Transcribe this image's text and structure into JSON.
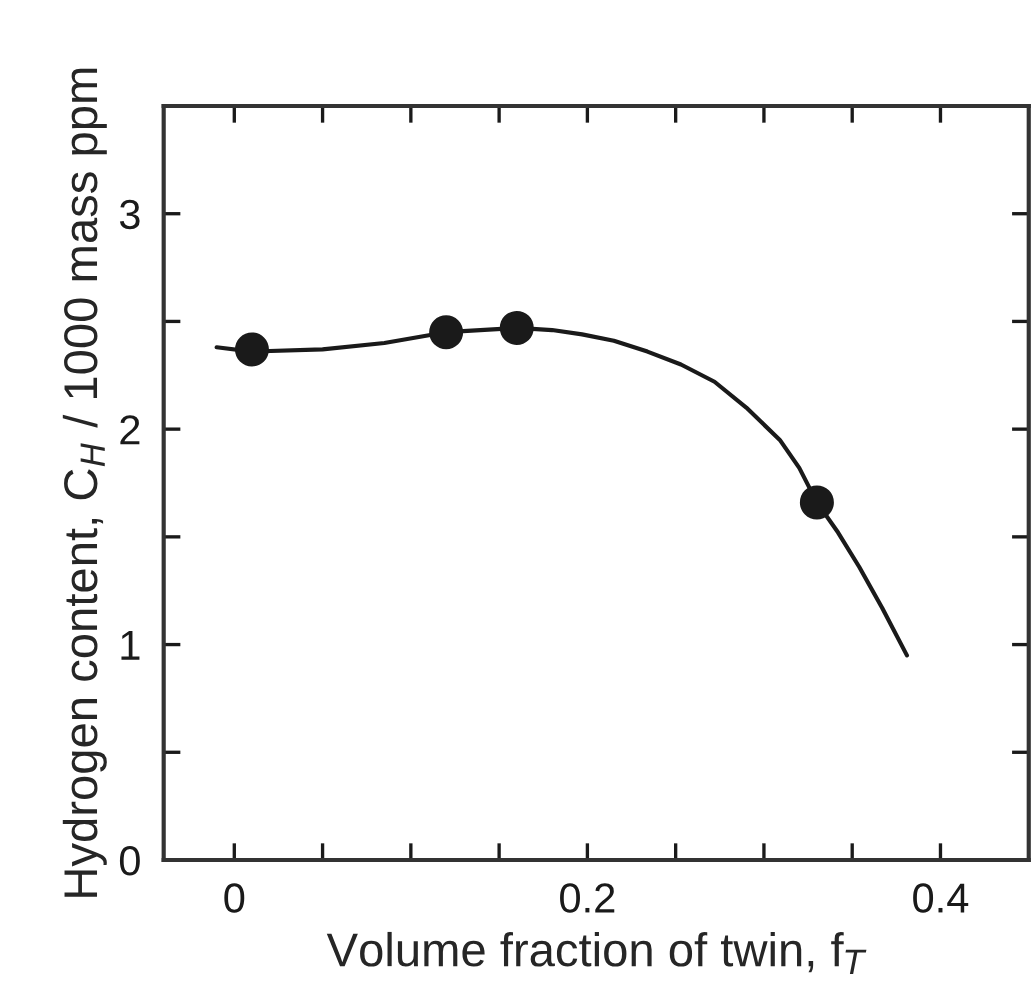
{
  "chart_data": {
    "type": "scatter",
    "xlabel": "Volume fraction of twin, f$_{T}$",
    "ylabel": "Hydrogen content, C$_{H}$ / 1000 mass ppm",
    "series": [
      {
        "color": "#1a1a1a",
        "marker": "circle",
        "x": [
          0.01,
          0.12,
          0.16,
          0.33
        ],
        "values": [
          2.37,
          2.45,
          2.47,
          1.66
        ]
      },
      {
        "type": "line",
        "color": "#1a1a1a",
        "marker": "none",
        "line_style": "solid",
        "x": [
          -0.01,
          0.01,
          0.05,
          0.085,
          0.12,
          0.16,
          0.18,
          0.197,
          0.215,
          0.234,
          0.253,
          0.272,
          0.29,
          0.309,
          0.32,
          0.33,
          0.342,
          0.354,
          0.367,
          0.381
        ],
        "values": [
          2.38,
          2.36,
          2.37,
          2.4,
          2.45,
          2.47,
          2.46,
          2.44,
          2.41,
          2.36,
          2.3,
          2.22,
          2.1,
          1.95,
          1.82,
          1.66,
          1.52,
          1.36,
          1.17,
          0.95
        ]
      }
    ],
    "xlim": [
      -0.04,
      0.45
    ],
    "xticks": [
      0,
      {
        "value": 0.05,
        "label": null
      },
      {
        "value": 0.1,
        "label": null
      },
      {
        "value": 0.15,
        "label": null
      },
      0.2,
      {
        "value": 0.25,
        "label": null
      },
      {
        "value": 0.3,
        "label": null
      },
      {
        "value": 0.35,
        "label": null
      },
      0.4
    ],
    "ylim": [
      0,
      3.5
    ],
    "yticks": [
      0,
      {
        "value": 0.5,
        "label": null
      },
      1,
      {
        "value": 1.5,
        "label": null
      },
      2,
      {
        "value": 2.5,
        "label": null
      },
      3
    ],
    "grid": false,
    "legend": false
  }
}
